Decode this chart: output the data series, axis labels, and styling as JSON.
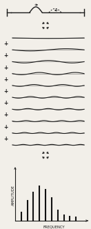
{
  "bg_color": "#f2efe9",
  "line_color": "#1a1a1a",
  "plus_color": "#1a1a1a",
  "n_modes": 10,
  "mode_amplitudes": [
    0.008,
    0.018,
    0.02,
    0.018,
    0.015,
    0.013,
    0.011,
    0.009,
    0.008,
    0.007
  ],
  "spectrum_bars": [
    0.18,
    0.42,
    0.6,
    0.72,
    0.65,
    0.48,
    0.22,
    0.12,
    0.09,
    0.07
  ],
  "spectrum_bar_color": "#111111",
  "amplitude_label": "AMPLITUDE",
  "frequency_label": "FREQUENCY",
  "label_fontsize": 3.8
}
